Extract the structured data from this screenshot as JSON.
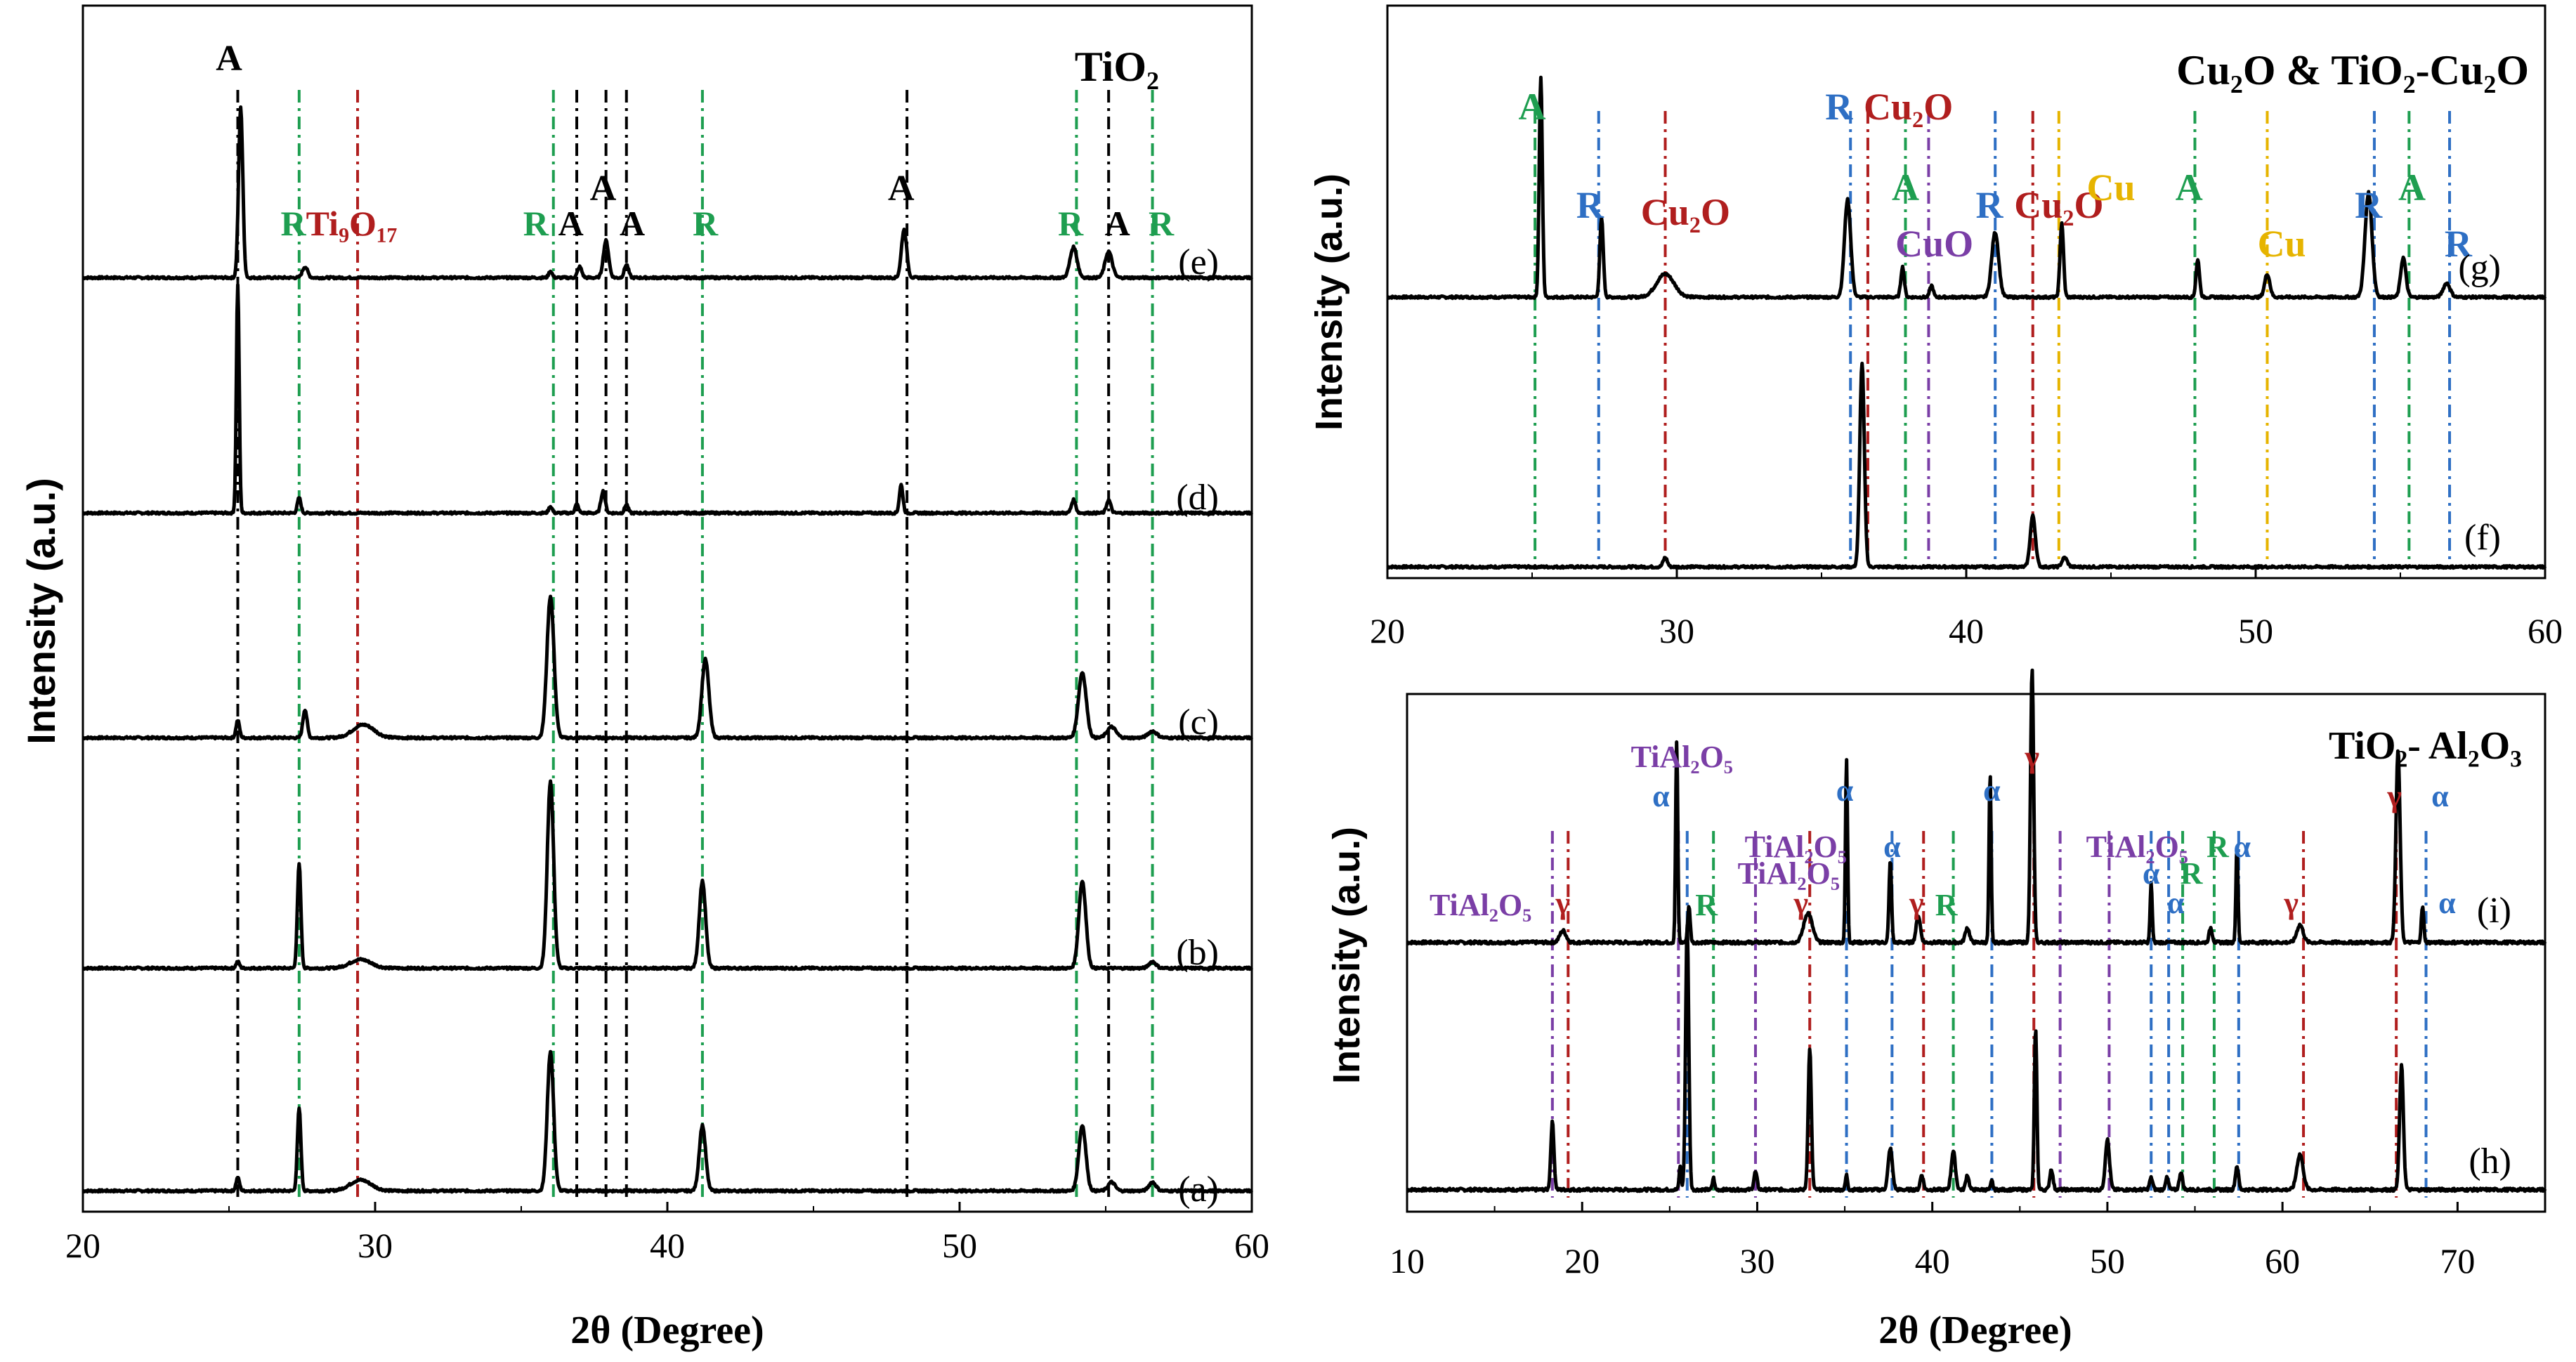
{
  "chart_data": [
    {
      "id": "left",
      "type": "line",
      "title": "TiO₂",
      "xlabel": "2θ (Degree)",
      "ylabel": "Intensity (a.u.)",
      "xlim": [
        20,
        60
      ],
      "xticks": [
        "20",
        "30",
        "40",
        "50",
        "60"
      ],
      "grid": false,
      "colors": {
        "A": "#000000",
        "R": "#1e9e50",
        "Ti9O17": "#b01e1e"
      },
      "series": [
        {
          "name": "(a)",
          "label": "(a)",
          "peaks": [
            [
              25.3,
              0.06,
              0.1
            ],
            [
              27.4,
              0.38,
              0.1
            ],
            [
              29.5,
              0.05,
              0.6
            ],
            [
              36.0,
              0.64,
              0.18
            ],
            [
              41.2,
              0.3,
              0.18
            ],
            [
              54.2,
              0.3,
              0.2
            ],
            [
              55.2,
              0.04,
              0.2
            ],
            [
              56.6,
              0.04,
              0.2
            ]
          ]
        },
        {
          "name": "(b)",
          "label": "(b)",
          "peaks": [
            [
              25.3,
              0.03,
              0.1
            ],
            [
              27.4,
              0.48,
              0.1
            ],
            [
              29.5,
              0.04,
              0.6
            ],
            [
              36.0,
              0.86,
              0.18
            ],
            [
              41.2,
              0.4,
              0.18
            ],
            [
              54.2,
              0.4,
              0.2
            ],
            [
              56.6,
              0.03,
              0.2
            ]
          ]
        },
        {
          "name": "(c)",
          "label": "(c)",
          "peaks": [
            [
              25.3,
              0.08,
              0.1
            ],
            [
              27.6,
              0.13,
              0.12
            ],
            [
              29.6,
              0.06,
              0.6
            ],
            [
              36.0,
              0.65,
              0.2
            ],
            [
              41.3,
              0.36,
              0.2
            ],
            [
              54.2,
              0.3,
              0.22
            ],
            [
              55.2,
              0.05,
              0.25
            ],
            [
              56.6,
              0.03,
              0.25
            ]
          ]
        },
        {
          "name": "(d)",
          "label": "(d)",
          "peaks": [
            [
              25.3,
              1.05,
              0.08
            ],
            [
              27.4,
              0.07,
              0.1
            ],
            [
              36.0,
              0.03,
              0.1
            ],
            [
              36.9,
              0.04,
              0.1
            ],
            [
              37.8,
              0.1,
              0.12
            ],
            [
              38.6,
              0.04,
              0.1
            ],
            [
              48.0,
              0.13,
              0.1
            ],
            [
              53.9,
              0.06,
              0.12
            ],
            [
              55.1,
              0.06,
              0.12
            ]
          ]
        },
        {
          "name": "(e)",
          "label": "(e)",
          "peaks": [
            [
              25.4,
              0.78,
              0.12
            ],
            [
              27.6,
              0.05,
              0.15
            ],
            [
              36.0,
              0.03,
              0.1
            ],
            [
              37.0,
              0.05,
              0.12
            ],
            [
              37.9,
              0.17,
              0.15
            ],
            [
              38.6,
              0.06,
              0.12
            ],
            [
              48.1,
              0.22,
              0.15
            ],
            [
              53.9,
              0.14,
              0.2
            ],
            [
              55.1,
              0.12,
              0.2
            ]
          ]
        }
      ],
      "reference_lines": [
        {
          "x": 25.3,
          "phase": "A"
        },
        {
          "x": 27.4,
          "phase": "R"
        },
        {
          "x": 29.4,
          "phase": "Ti9O17"
        },
        {
          "x": 36.1,
          "phase": "R"
        },
        {
          "x": 36.9,
          "phase": "A"
        },
        {
          "x": 37.9,
          "phase": "A"
        },
        {
          "x": 38.6,
          "phase": "A"
        },
        {
          "x": 41.2,
          "phase": "R"
        },
        {
          "x": 48.2,
          "phase": "A"
        },
        {
          "x": 54.0,
          "phase": "R"
        },
        {
          "x": 55.1,
          "phase": "A"
        },
        {
          "x": 56.6,
          "phase": "R"
        }
      ],
      "annotations": [
        {
          "text": "A",
          "x": 25.0,
          "tier": 0,
          "phase": "A"
        },
        {
          "text": "R",
          "x": 27.2,
          "tier": 1,
          "phase": "R"
        },
        {
          "text": "Ti₉O₁₇",
          "x": 29.2,
          "tier": 1,
          "phase": "Ti9O17"
        },
        {
          "text": "R",
          "x": 35.5,
          "tier": 1,
          "phase": "R"
        },
        {
          "text": "A",
          "x": 36.7,
          "tier": 1,
          "phase": "A"
        },
        {
          "text": "A",
          "x": 37.8,
          "tier": 2,
          "phase": "A"
        },
        {
          "text": "A",
          "x": 38.8,
          "tier": 1,
          "phase": "A"
        },
        {
          "text": "R",
          "x": 41.3,
          "tier": 1,
          "phase": "R"
        },
        {
          "text": "A",
          "x": 48.0,
          "tier": 2,
          "phase": "A"
        },
        {
          "text": "R",
          "x": 53.8,
          "tier": 1,
          "phase": "R"
        },
        {
          "text": "A",
          "x": 55.4,
          "tier": 1,
          "phase": "A"
        },
        {
          "text": "R",
          "x": 56.9,
          "tier": 1,
          "phase": "R"
        }
      ]
    },
    {
      "id": "top-right",
      "type": "line",
      "title": "Cu₂O & TiO₂-Cu₂O",
      "xlabel": "",
      "ylabel": "Intensity (a.u.)",
      "xlim": [
        20,
        60
      ],
      "xticks": [
        "20",
        "30",
        "40",
        "50",
        "60"
      ],
      "grid": false,
      "colors": {
        "A": "#1e9e50",
        "R": "#2e6fc4",
        "Cu2O": "#b01e1e",
        "CuO": "#7a3ea6",
        "Cu": "#e6b400"
      },
      "series": [
        {
          "name": "(f)",
          "label": "(f)",
          "peaks": [
            [
              29.6,
              0.04,
              0.12
            ],
            [
              36.4,
              0.88,
              0.13
            ],
            [
              42.3,
              0.22,
              0.15
            ],
            [
              43.4,
              0.04,
              0.15
            ]
          ]
        },
        {
          "name": "(g)",
          "label": "(g)",
          "peaks": [
            [
              25.3,
              0.95,
              0.09
            ],
            [
              27.4,
              0.34,
              0.1
            ],
            [
              29.6,
              0.1,
              0.5
            ],
            [
              35.9,
              0.42,
              0.18
            ],
            [
              37.8,
              0.13,
              0.1
            ],
            [
              38.8,
              0.05,
              0.1
            ],
            [
              41.0,
              0.28,
              0.2
            ],
            [
              43.3,
              0.32,
              0.1
            ],
            [
              48.0,
              0.16,
              0.1
            ],
            [
              50.4,
              0.1,
              0.15
            ],
            [
              53.9,
              0.45,
              0.2
            ],
            [
              55.1,
              0.17,
              0.15
            ],
            [
              56.6,
              0.06,
              0.2
            ]
          ]
        }
      ],
      "reference_lines": [
        {
          "x": 25.1,
          "phase": "A"
        },
        {
          "x": 27.3,
          "phase": "R"
        },
        {
          "x": 29.6,
          "phase": "Cu2O"
        },
        {
          "x": 36.0,
          "phase": "R"
        },
        {
          "x": 36.6,
          "phase": "Cu2O"
        },
        {
          "x": 37.9,
          "phase": "A"
        },
        {
          "x": 38.7,
          "phase": "CuO"
        },
        {
          "x": 41.0,
          "phase": "R"
        },
        {
          "x": 42.3,
          "phase": "Cu2O"
        },
        {
          "x": 43.2,
          "phase": "Cu"
        },
        {
          "x": 47.9,
          "phase": "A"
        },
        {
          "x": 50.4,
          "phase": "Cu"
        },
        {
          "x": 54.1,
          "phase": "R"
        },
        {
          "x": 55.3,
          "phase": "A"
        },
        {
          "x": 56.7,
          "phase": "R"
        }
      ],
      "annotations": [
        {
          "text": "A",
          "x": 25.0,
          "tier": 0,
          "phase": "A"
        },
        {
          "text": "R",
          "x": 27.0,
          "tier": 1,
          "phase": "R"
        },
        {
          "text": "Cu₂O",
          "x": 30.3,
          "tier": 2,
          "phase": "Cu2O"
        },
        {
          "text": "R",
          "x": 35.6,
          "tier": 0,
          "phase": "R"
        },
        {
          "text": "Cu₂O",
          "x": 38.0,
          "tier": 0,
          "phase": "Cu2O"
        },
        {
          "text": "A",
          "x": 37.9,
          "tier": 3,
          "phase": "A"
        },
        {
          "text": "CuO",
          "x": 38.9,
          "tier": 4,
          "phase": "CuO"
        },
        {
          "text": "R",
          "x": 40.8,
          "tier": 1,
          "phase": "R"
        },
        {
          "text": "Cu₂O",
          "x": 43.2,
          "tier": 1,
          "phase": "Cu2O"
        },
        {
          "text": "Cu",
          "x": 45.0,
          "tier": 3,
          "phase": "Cu"
        },
        {
          "text": "A",
          "x": 47.7,
          "tier": 3,
          "phase": "A"
        },
        {
          "text": "Cu",
          "x": 50.9,
          "tier": 4,
          "phase": "Cu"
        },
        {
          "text": "R",
          "x": 53.9,
          "tier": 1,
          "phase": "R"
        },
        {
          "text": "A",
          "x": 55.4,
          "tier": 3,
          "phase": "A"
        },
        {
          "text": "R",
          "x": 57.0,
          "tier": 4,
          "phase": "R"
        }
      ]
    },
    {
      "id": "bottom-right",
      "type": "line",
      "title": "TiO₂- Al₂O₃",
      "xlabel": "2θ (Degree)",
      "ylabel": "Intensity (a.u.)",
      "xlim": [
        10,
        75
      ],
      "xticks": [
        "10",
        "20",
        "30",
        "40",
        "50",
        "60",
        "70"
      ],
      "grid": false,
      "colors": {
        "alpha": "#2e6fc4",
        "gamma": "#b01e1e",
        "R": "#1e9e50",
        "TiAl2O5": "#7a3ea6"
      },
      "series": [
        {
          "name": "(h)",
          "label": "(h)",
          "peaks": [
            [
              18.3,
              0.23,
              0.15
            ],
            [
              25.6,
              0.08,
              0.1
            ],
            [
              26.0,
              0.9,
              0.15
            ],
            [
              27.5,
              0.04,
              0.1
            ],
            [
              29.9,
              0.06,
              0.15
            ],
            [
              33.0,
              0.48,
              0.15
            ],
            [
              35.1,
              0.05,
              0.1
            ],
            [
              37.6,
              0.14,
              0.2
            ],
            [
              39.4,
              0.05,
              0.15
            ],
            [
              41.2,
              0.13,
              0.2
            ],
            [
              42.0,
              0.05,
              0.15
            ],
            [
              43.4,
              0.03,
              0.1
            ],
            [
              45.9,
              0.55,
              0.12
            ],
            [
              46.8,
              0.07,
              0.15
            ],
            [
              50.0,
              0.17,
              0.2
            ],
            [
              52.5,
              0.04,
              0.15
            ],
            [
              53.4,
              0.04,
              0.15
            ],
            [
              54.2,
              0.06,
              0.15
            ],
            [
              57.4,
              0.08,
              0.15
            ],
            [
              61.0,
              0.12,
              0.3
            ],
            [
              66.8,
              0.42,
              0.18
            ]
          ]
        },
        {
          "name": "(i)",
          "label": "(i)",
          "peaks": [
            [
              18.9,
              0.04,
              0.3
            ],
            [
              25.4,
              0.68,
              0.1
            ],
            [
              26.1,
              0.12,
              0.12
            ],
            [
              32.9,
              0.1,
              0.4
            ],
            [
              35.1,
              0.62,
              0.1
            ],
            [
              37.6,
              0.28,
              0.12
            ],
            [
              39.2,
              0.09,
              0.2
            ],
            [
              42.0,
              0.05,
              0.2
            ],
            [
              43.3,
              0.57,
              0.1
            ],
            [
              45.7,
              0.93,
              0.15
            ],
            [
              52.5,
              0.2,
              0.1
            ],
            [
              55.9,
              0.05,
              0.15
            ],
            [
              57.4,
              0.33,
              0.1
            ],
            [
              61.0,
              0.06,
              0.3
            ],
            [
              66.6,
              0.65,
              0.2
            ],
            [
              68.0,
              0.12,
              0.12
            ]
          ]
        }
      ],
      "reference_lines": [
        {
          "x": 18.3,
          "phase": "TiAl2O5"
        },
        {
          "x": 19.2,
          "phase": "gamma"
        },
        {
          "x": 25.5,
          "phase": "TiAl2O5"
        },
        {
          "x": 26.0,
          "phase": "alpha"
        },
        {
          "x": 27.5,
          "phase": "R"
        },
        {
          "x": 29.9,
          "phase": "TiAl2O5"
        },
        {
          "x": 33.0,
          "phase": "gamma"
        },
        {
          "x": 35.1,
          "phase": "alpha"
        },
        {
          "x": 37.7,
          "phase": "alpha"
        },
        {
          "x": 39.5,
          "phase": "gamma"
        },
        {
          "x": 41.2,
          "phase": "R"
        },
        {
          "x": 43.4,
          "phase": "alpha"
        },
        {
          "x": 45.8,
          "phase": "gamma"
        },
        {
          "x": 47.3,
          "phase": "TiAl2O5"
        },
        {
          "x": 50.1,
          "phase": "TiAl2O5"
        },
        {
          "x": 52.5,
          "phase": "alpha"
        },
        {
          "x": 53.5,
          "phase": "alpha"
        },
        {
          "x": 54.3,
          "phase": "R"
        },
        {
          "x": 56.1,
          "phase": "R"
        },
        {
          "x": 57.5,
          "phase": "alpha"
        },
        {
          "x": 61.2,
          "phase": "gamma"
        },
        {
          "x": 66.5,
          "phase": "gamma"
        },
        {
          "x": 68.2,
          "phase": "alpha"
        }
      ],
      "annotations": [
        {
          "text": "TiAl₂O₅",
          "x": 14.2,
          "tier": 6,
          "phase": "TiAl2O5"
        },
        {
          "text": "γ",
          "x": 18.9,
          "tier": 5,
          "phase": "gamma"
        },
        {
          "text": "TiAl₂O₅",
          "x": 25.7,
          "tier": 0,
          "phase": "TiAl2O5"
        },
        {
          "text": "α",
          "x": 24.5,
          "tier": 1,
          "phase": "alpha"
        },
        {
          "text": "R",
          "x": 27.1,
          "tier": 6,
          "phase": "R"
        },
        {
          "text": "TiAl₂O₅",
          "x": 32.2,
          "tier": 3,
          "phase": "TiAl2O5"
        },
        {
          "text": "TiAl₂O₅",
          "x": 31.8,
          "tier": 4,
          "phase": "TiAl2O5"
        },
        {
          "text": "γ",
          "x": 32.5,
          "tier": 5,
          "phase": "gamma"
        },
        {
          "text": "α",
          "x": 35.0,
          "tier": 2,
          "phase": "alpha"
        },
        {
          "text": "α",
          "x": 37.7,
          "tier": 3,
          "phase": "alpha"
        },
        {
          "text": "γ",
          "x": 39.1,
          "tier": 5,
          "phase": "gamma"
        },
        {
          "text": "R",
          "x": 40.8,
          "tier": 6,
          "phase": "R"
        },
        {
          "text": "α",
          "x": 43.4,
          "tier": 2,
          "phase": "alpha"
        },
        {
          "text": "γ",
          "x": 45.7,
          "tier": 0,
          "phase": "gamma"
        },
        {
          "text": "TiAl₂O₅",
          "x": 51.7,
          "tier": 3,
          "phase": "TiAl2O5"
        },
        {
          "text": "α",
          "x": 52.5,
          "tier": 4,
          "phase": "alpha"
        },
        {
          "text": "α",
          "x": 53.9,
          "tier": 5,
          "phase": "alpha"
        },
        {
          "text": "R",
          "x": 54.8,
          "tier": 4,
          "phase": "R"
        },
        {
          "text": "R",
          "x": 56.3,
          "tier": 3,
          "phase": "R"
        },
        {
          "text": "α",
          "x": 57.7,
          "tier": 3,
          "phase": "alpha"
        },
        {
          "text": "γ",
          "x": 60.5,
          "tier": 5,
          "phase": "gamma"
        },
        {
          "text": "γ",
          "x": 66.4,
          "tier": 1,
          "phase": "gamma"
        },
        {
          "text": "α",
          "x": 69.0,
          "tier": 1,
          "phase": "alpha"
        },
        {
          "text": "α",
          "x": 69.4,
          "tier": 5,
          "phase": "alpha"
        }
      ]
    }
  ]
}
